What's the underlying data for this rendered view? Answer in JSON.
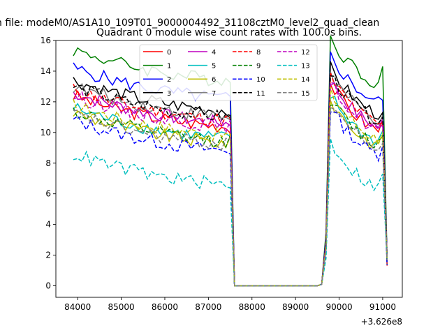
{
  "figure_title": "n file: modeM0/AS1A10_109T01_9000004492_31108cztM0_level2_quad_clean",
  "chart_data": {
    "type": "line",
    "title": "Quadrant 0 module wise count rates with 100.0s bins.",
    "xlabel": "",
    "ylabel": "",
    "x_offset_label": "+3.626e8",
    "xlim": [
      83500,
      91450
    ],
    "ylim": [
      -0.75,
      16
    ],
    "x_ticks": [
      84000,
      85000,
      86000,
      87000,
      88000,
      89000,
      90000,
      91000
    ],
    "x_tick_labels": [
      "84000",
      "85000",
      "86000",
      "87000",
      "88000",
      "89000",
      "90000",
      "91000"
    ],
    "y_ticks": [
      0,
      2,
      4,
      6,
      8,
      10,
      12,
      14,
      16
    ],
    "y_tick_labels": [
      "0",
      "2",
      "4",
      "6",
      "8",
      "10",
      "12",
      "14",
      "16"
    ],
    "grid": false,
    "legend_placement": "top-center",
    "legend_columns": 4,
    "x_seg1": [
      83900,
      84000,
      84100,
      84200,
      84300,
      84400,
      84500,
      84600,
      84700,
      84800,
      84900,
      85000,
      85100,
      85200,
      85300,
      85400,
      85500,
      85600,
      85700,
      85800,
      85900,
      86000,
      86100,
      86200,
      86300,
      86400,
      86500,
      86600,
      86700,
      86800,
      86900,
      87000,
      87100,
      87200,
      87300,
      87400,
      87500,
      87600
    ],
    "x_seg2": [
      87700,
      87800,
      87900,
      88000,
      88100,
      88200,
      88300,
      88400,
      88500,
      88600,
      88700,
      88800,
      88900,
      89000,
      89100,
      89200,
      89300,
      89400,
      89500,
      89600,
      89700,
      89800,
      89900,
      90000,
      90100,
      90200,
      90300,
      90400,
      90500,
      90600,
      90700,
      90800,
      90900,
      91000,
      91100
    ],
    "series": [
      {
        "name": "0",
        "color": "#ff0000",
        "dash": "solid",
        "level": 11.0,
        "end": 10.5
      },
      {
        "name": "1",
        "color": "#008000",
        "dash": "solid",
        "level": 14.0,
        "end": 12.8
      },
      {
        "name": "2",
        "color": "#0000ff",
        "dash": "solid",
        "level": 12.8,
        "end": 11.8
      },
      {
        "name": "3",
        "color": "#000000",
        "dash": "solid",
        "level": 12.0,
        "end": 11.0
      },
      {
        "name": "4",
        "color": "#bf00bf",
        "dash": "solid",
        "level": 11.2,
        "end": 10.6
      },
      {
        "name": "5",
        "color": "#00bfbf",
        "dash": "solid",
        "level": 10.2,
        "end": 9.8
      },
      {
        "name": "6",
        "color": "#bfbf00",
        "dash": "solid",
        "level": 9.9,
        "end": 9.4
      },
      {
        "name": "7",
        "color": "#808080",
        "dash": "solid",
        "level": 11.6,
        "end": 10.8
      },
      {
        "name": "8",
        "color": "#ff0000",
        "dash": "dashed",
        "level": 11.4,
        "end": 10.3
      },
      {
        "name": "9",
        "color": "#008000",
        "dash": "dashed",
        "level": 10.0,
        "end": 9.5
      },
      {
        "name": "10",
        "color": "#0000ff",
        "dash": "dashed",
        "level": 9.4,
        "end": 8.8
      },
      {
        "name": "11",
        "color": "#000000",
        "dash": "dashed",
        "level": 11.6,
        "end": 10.7
      },
      {
        "name": "12",
        "color": "#bf00bf",
        "dash": "dashed",
        "level": 11.0,
        "end": 10.2
      },
      {
        "name": "13",
        "color": "#00bfbf",
        "dash": "dashed",
        "level": 7.2,
        "end": 7.0
      },
      {
        "name": "14",
        "color": "#bfbf00",
        "dash": "dashed",
        "level": 10.4,
        "end": 9.7
      },
      {
        "name": "15",
        "color": "#808080",
        "dash": "dashed",
        "level": 9.8,
        "end": 9.0
      }
    ]
  }
}
